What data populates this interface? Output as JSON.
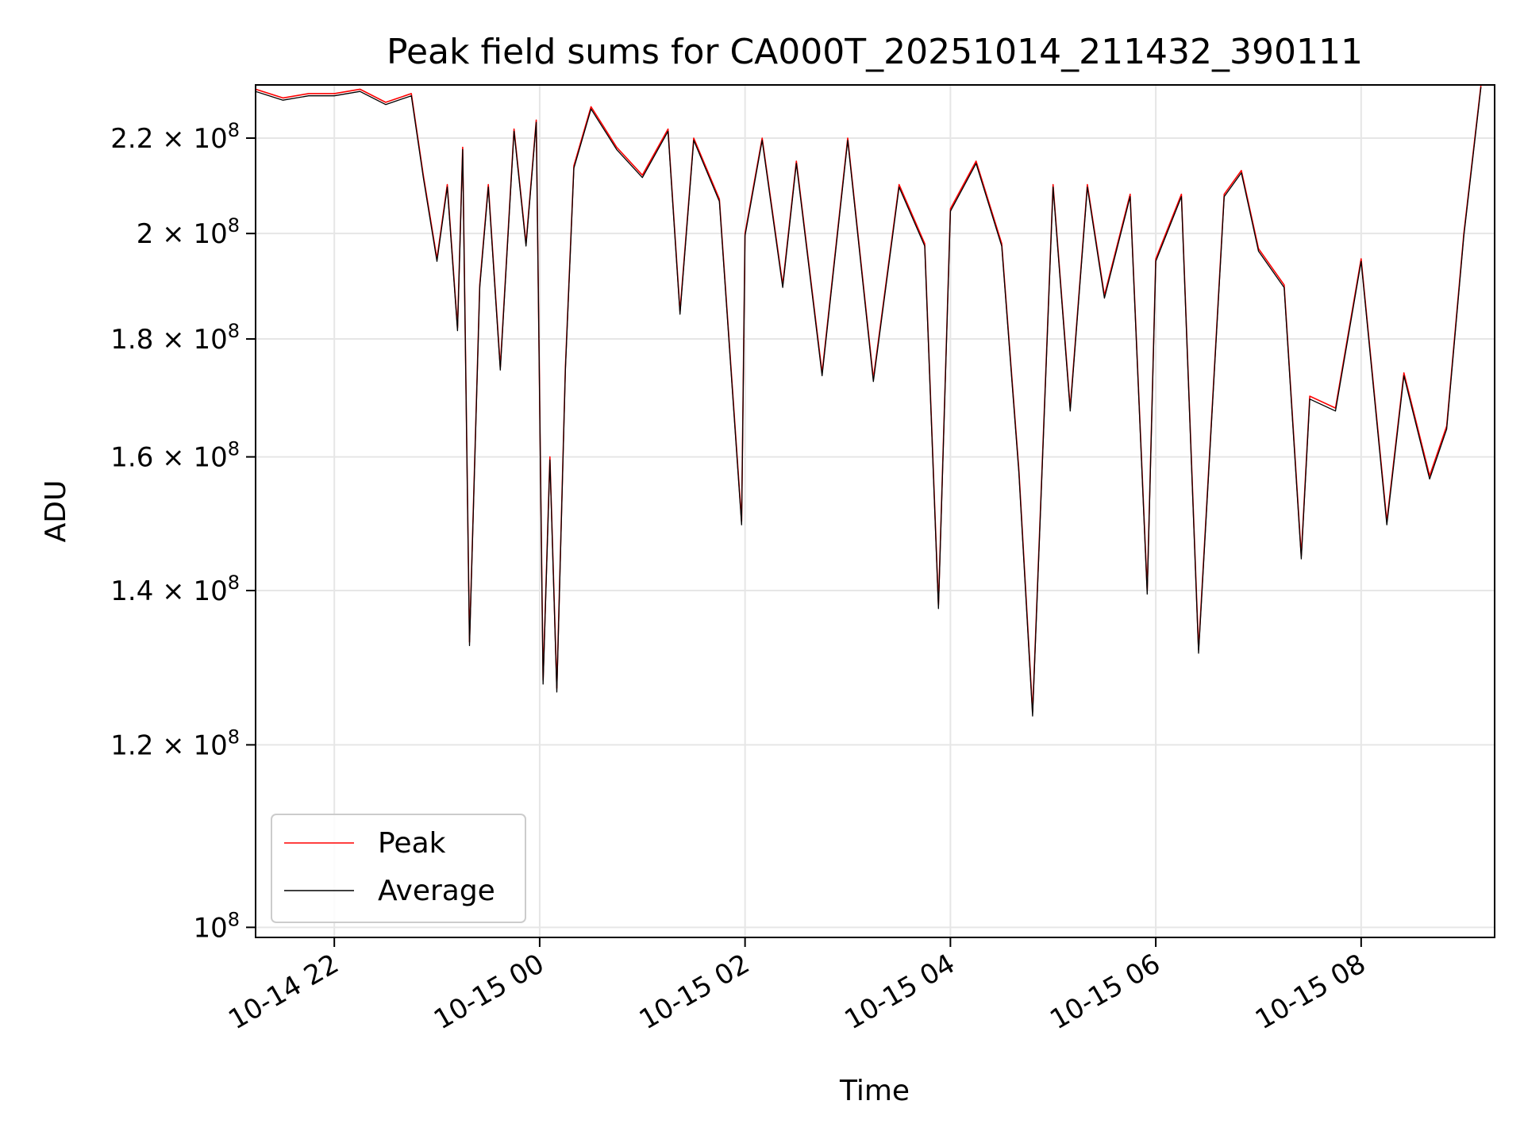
{
  "chart_data": {
    "type": "line",
    "title": "Peak field sums for CA000T_20251014_211432_390111",
    "xlabel": "Time",
    "ylabel": "ADU",
    "y_scale": "log",
    "ylim": [
      99000000,
      232000000
    ],
    "xlim": [
      "2025-10-14 21:14",
      "2025-10-15 09:18"
    ],
    "grid": true,
    "legend": {
      "placement": "lower-left",
      "entries": [
        "Peak",
        "Average"
      ]
    },
    "x_tick_labels": [
      "10-14 22",
      "10-15 00",
      "10-15 02",
      "10-15 04",
      "10-15 06",
      "10-15 08"
    ],
    "x_tick_values": [
      "2025-10-14 22:00",
      "2025-10-15 00:00",
      "2025-10-15 02:00",
      "2025-10-15 04:00",
      "2025-10-15 06:00",
      "2025-10-15 08:00"
    ],
    "y_tick_values": [
      100000000,
      120000000,
      140000000,
      160000000,
      180000000,
      200000000,
      220000000
    ],
    "y_tick_labels": [
      {
        "mant": "",
        "exp": "8"
      },
      {
        "mant": "1.2",
        "exp": "8"
      },
      {
        "mant": "1.4",
        "exp": "8"
      },
      {
        "mant": "1.6",
        "exp": "8"
      },
      {
        "mant": "1.8",
        "exp": "8"
      },
      {
        "mant": "2",
        "exp": "8"
      },
      {
        "mant": "2.2",
        "exp": "8"
      }
    ],
    "colors": {
      "Peak": "#ff0000",
      "Average": "#000000"
    },
    "x": [
      "2025-10-14 21:14",
      "2025-10-14 21:30",
      "2025-10-14 21:45",
      "2025-10-14 22:00",
      "2025-10-14 22:15",
      "2025-10-14 22:30",
      "2025-10-14 22:45",
      "2025-10-14 22:52",
      "2025-10-14 23:00",
      "2025-10-14 23:06",
      "2025-10-14 23:12",
      "2025-10-14 23:15",
      "2025-10-14 23:19",
      "2025-10-14 23:25",
      "2025-10-14 23:30",
      "2025-10-14 23:37",
      "2025-10-14 23:45",
      "2025-10-14 23:52",
      "2025-10-14 23:58",
      "2025-10-15 00:02",
      "2025-10-15 00:06",
      "2025-10-15 00:10",
      "2025-10-15 00:15",
      "2025-10-15 00:20",
      "2025-10-15 00:30",
      "2025-10-15 00:45",
      "2025-10-15 01:00",
      "2025-10-15 01:15",
      "2025-10-15 01:22",
      "2025-10-15 01:30",
      "2025-10-15 01:45",
      "2025-10-15 01:58",
      "2025-10-15 02:00",
      "2025-10-15 02:10",
      "2025-10-15 02:22",
      "2025-10-15 02:30",
      "2025-10-15 02:45",
      "2025-10-15 03:00",
      "2025-10-15 03:15",
      "2025-10-15 03:30",
      "2025-10-15 03:45",
      "2025-10-15 03:53",
      "2025-10-15 04:00",
      "2025-10-15 04:15",
      "2025-10-15 04:30",
      "2025-10-15 04:40",
      "2025-10-15 04:48",
      "2025-10-15 05:00",
      "2025-10-15 05:10",
      "2025-10-15 05:20",
      "2025-10-15 05:30",
      "2025-10-15 05:45",
      "2025-10-15 05:55",
      "2025-10-15 06:00",
      "2025-10-15 06:15",
      "2025-10-15 06:25",
      "2025-10-15 06:40",
      "2025-10-15 06:50",
      "2025-10-15 07:00",
      "2025-10-15 07:15",
      "2025-10-15 07:25",
      "2025-10-15 07:30",
      "2025-10-15 07:45",
      "2025-10-15 08:00",
      "2025-10-15 08:15",
      "2025-10-15 08:25",
      "2025-10-15 08:40",
      "2025-10-15 08:50",
      "2025-10-15 09:00",
      "2025-10-15 09:10"
    ],
    "series": [
      {
        "name": "Peak",
        "values": [
          231000000,
          229000000,
          230000000,
          230000000,
          231000000,
          228000000,
          230000000,
          212000000,
          195000000,
          210000000,
          182000000,
          218000000,
          133000000,
          190000000,
          210000000,
          175000000,
          222000000,
          198000000,
          224000000,
          128000000,
          160000000,
          127000000,
          175000000,
          214000000,
          227000000,
          218000000,
          212000000,
          222000000,
          185000000,
          220000000,
          207000000,
          150000000,
          200000000,
          220000000,
          190000000,
          215000000,
          174000000,
          220000000,
          173000000,
          210000000,
          198000000,
          138000000,
          205000000,
          215000000,
          198000000,
          158000000,
          124000000,
          210000000,
          168000000,
          210000000,
          188000000,
          208000000,
          140000000,
          195000000,
          208000000,
          132000000,
          208000000,
          213000000,
          197000000,
          190000000,
          145000000,
          170000000,
          168000000,
          195000000,
          150000000,
          174000000,
          157000000,
          165000000,
          200000000,
          232000000
        ]
      },
      {
        "name": "Average",
        "values": [
          230500000,
          228500000,
          229500000,
          229500000,
          230500000,
          227500000,
          229500000,
          211500000,
          194500000,
          209500000,
          181500000,
          217500000,
          132500000,
          189500000,
          209500000,
          174500000,
          221500000,
          197500000,
          223500000,
          127500000,
          159500000,
          126500000,
          174500000,
          213500000,
          226500000,
          217500000,
          211500000,
          221500000,
          184500000,
          219500000,
          206500000,
          149500000,
          199500000,
          219500000,
          189500000,
          214500000,
          173500000,
          219500000,
          172500000,
          209500000,
          197500000,
          137500000,
          204500000,
          214500000,
          197500000,
          157500000,
          123500000,
          209500000,
          167500000,
          209500000,
          187500000,
          207500000,
          139500000,
          194500000,
          207500000,
          131500000,
          207500000,
          212500000,
          196500000,
          189500000,
          144500000,
          169500000,
          167500000,
          194500000,
          149500000,
          173500000,
          156500000,
          164500000,
          199500000,
          231500000
        ]
      }
    ]
  }
}
